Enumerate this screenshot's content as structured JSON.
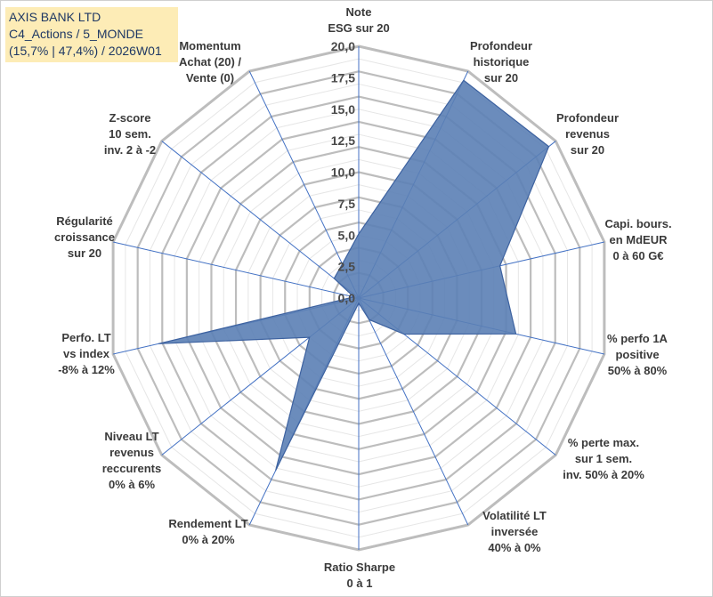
{
  "header": {
    "line1": "AXIS BANK LTD",
    "line2": "C4_Actions / 5_MONDE",
    "line3": "(15,7% | 47,4%) / 2026W01"
  },
  "colors": {
    "fill": "#5b7fb5",
    "stroke": "#3d62a0",
    "grid": "#c0c0c0",
    "spoke": "#4472c4",
    "legend_bg": "#fdecb6"
  },
  "chart_data": {
    "type": "radar",
    "title": "AXIS BANK LTD",
    "range": [
      0,
      20
    ],
    "ticks": [
      "0,0",
      "2,5",
      "5,0",
      "7,5",
      "10,0",
      "12,5",
      "15,0",
      "17,5",
      "20,0"
    ],
    "axes": [
      {
        "label": [
          "Note",
          "ESG sur 20"
        ],
        "value": 5.1
      },
      {
        "label": [
          "Profondeur",
          "historique",
          "sur 20"
        ],
        "value": 19.2
      },
      {
        "label": [
          "Profondeur",
          "revenus",
          "sur 20"
        ],
        "value": 19.3
      },
      {
        "label": [
          "Capi. bours.",
          "en MdEUR",
          "0 à 60 G€"
        ],
        "value": 11.5
      },
      {
        "label": [
          "% perfo 1A",
          "positive",
          "50% à 80%"
        ],
        "value": 12.8
      },
      {
        "label": [
          "% perte max.",
          "sur 1 sem.",
          "inv. 50% à 20%"
        ],
        "value": 4.6
      },
      {
        "label": [
          "Volatilité LT",
          "inversée",
          "40% à 0%"
        ],
        "value": 1.9
      },
      {
        "label": [
          "Ratio Sharpe",
          "0 à 1"
        ],
        "value": 0.4
      },
      {
        "label": [
          "Rendement LT",
          "0% à 20%"
        ],
        "value": 15.2
      },
      {
        "label": [
          "Niveau LT",
          "revenus",
          "reccurents",
          "0% à 6%"
        ],
        "value": 5.0
      },
      {
        "label": [
          "Perfo. LT",
          "vs index",
          "-8% à 12%"
        ],
        "value": 16.3
      },
      {
        "label": [
          "Régularité",
          "croissance",
          "sur 20"
        ],
        "value": 0.4
      },
      {
        "label": [
          "Z-score",
          "10 sem.",
          "inv. 2 à -2"
        ],
        "value": 2.5
      },
      {
        "label": [
          "Momentum",
          "Achat (20) /",
          "Vente (0)"
        ],
        "value": 3.0
      }
    ]
  }
}
